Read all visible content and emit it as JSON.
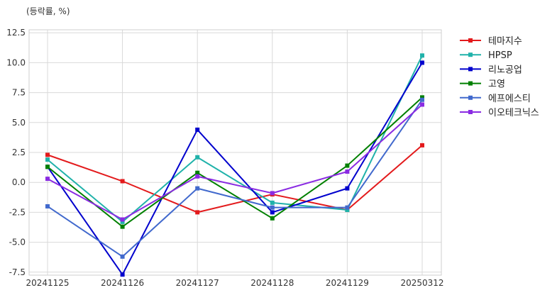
{
  "chart_data": {
    "type": "line",
    "unit_label": "(등락률, %)",
    "categories": [
      "20241125",
      "20241126",
      "20241127",
      "20241128",
      "20241129",
      "20250312"
    ],
    "ylim": [
      -7.75,
      12.75
    ],
    "yticks": [
      "12.5",
      "10.0",
      "7.5",
      "5.0",
      "2.5",
      "0.0",
      "-2.5",
      "-5.0",
      "-7.5"
    ],
    "grid": true,
    "legend_position": "right",
    "series": [
      {
        "name": "테마지수",
        "color": "#e31a1c",
        "values": [
          2.3,
          0.1,
          -2.5,
          -1.0,
          -2.3,
          3.1
        ]
      },
      {
        "name": "HPSP",
        "color": "#20b2aa",
        "values": [
          1.9,
          -3.3,
          2.1,
          -1.7,
          -2.3,
          10.6
        ]
      },
      {
        "name": "리노공업",
        "color": "#0000cd",
        "values": [
          1.3,
          -7.7,
          4.4,
          -2.5,
          -0.5,
          10.0
        ]
      },
      {
        "name": "고영",
        "color": "#008000",
        "values": [
          1.3,
          -3.7,
          0.8,
          -3.0,
          1.4,
          7.1
        ]
      },
      {
        "name": "에프에스티",
        "color": "#4169cd",
        "values": [
          -2.0,
          -6.2,
          -0.5,
          -2.1,
          -2.1,
          6.9
        ]
      },
      {
        "name": "이오테크닉스",
        "color": "#8a2be2",
        "values": [
          0.3,
          -3.1,
          0.5,
          -0.9,
          0.9,
          6.5
        ]
      }
    ]
  }
}
